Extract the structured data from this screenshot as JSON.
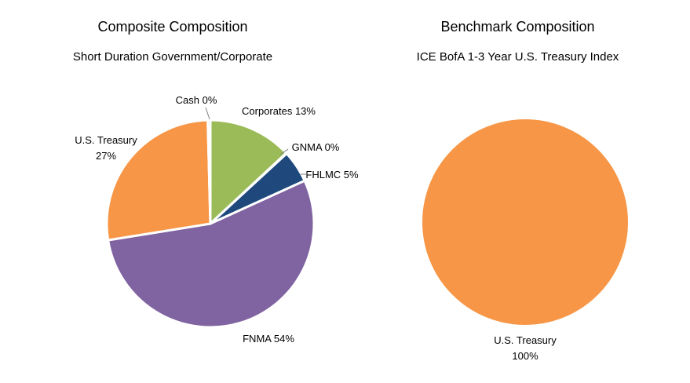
{
  "chart_data": [
    {
      "type": "pie",
      "title": "Composite Composition",
      "subtitle": "Short Duration Government/Corporate",
      "slices": [
        {
          "label": "Corporates",
          "value": 13,
          "value_label": "13%",
          "color": "#9BBB59"
        },
        {
          "label": "GNMA",
          "value": 0.1,
          "value_label": "0%",
          "color": "#17375E"
        },
        {
          "label": "FHLMC",
          "value": 5,
          "value_label": "5%",
          "color": "#1F497D"
        },
        {
          "label": "FNMA",
          "value": 54,
          "value_label": "54%",
          "color": "#8064A2"
        },
        {
          "label": "U.S. Treasury",
          "value": 27,
          "value_label": "27%",
          "color": "#F79646"
        },
        {
          "label": "Cash",
          "value": 0.4,
          "value_label": "0%",
          "color": "#8EB4E3"
        }
      ]
    },
    {
      "type": "pie",
      "title": "Benchmark Composition",
      "subtitle": "ICE BofA 1-3 Year U.S. Treasury Index",
      "slices": [
        {
          "label": "U.S. Treasury",
          "value": 100,
          "value_label": "100%",
          "color": "#F79646"
        }
      ]
    }
  ]
}
